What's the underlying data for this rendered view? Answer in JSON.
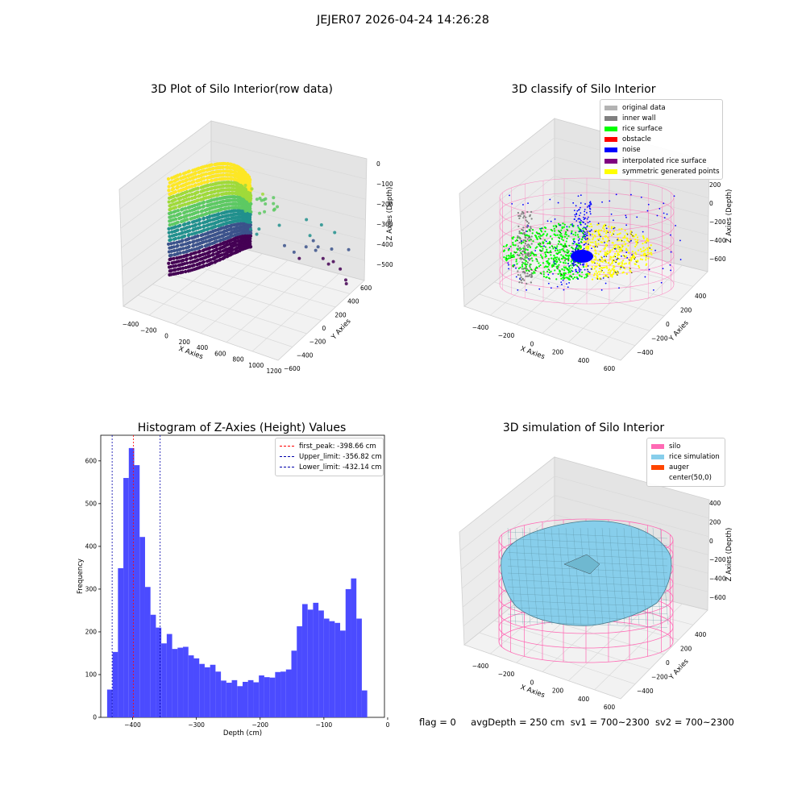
{
  "figure": {
    "suptitle": "JEJER07 2026-04-24 14:26:28",
    "status": {
      "flag": "flag = 0",
      "avg_depth": "avgDepth = 250 cm",
      "sv1": "sv1 = 700~2300",
      "sv2": "sv2 = 700~2300"
    }
  },
  "chart_data": [
    {
      "type": "scatter",
      "title": "3D Plot of Silo Interior(row data)",
      "xlabel": "X Axies",
      "ylabel": "Y Axies",
      "zlabel": "Z Axies (Depth)",
      "x_ticks": [
        "−400",
        "−200",
        "0",
        "200",
        "400",
        "600",
        "800",
        "1000",
        "1200"
      ],
      "y_ticks": [
        "−600",
        "−400",
        "−200",
        "0",
        "200",
        "400",
        "600"
      ],
      "z_ticks": [
        "0",
        "−100",
        "−200",
        "−300",
        "−400",
        "−500"
      ],
      "colormap": "viridis (by depth)",
      "grid": true
    },
    {
      "type": "scatter",
      "title": "3D classify of Silo Interior",
      "xlabel": "X Axies",
      "ylabel": "Y Axies",
      "zlabel": "Z Axies (Depth)",
      "x_ticks": [
        "−400",
        "−200",
        "0",
        "200",
        "400",
        "600"
      ],
      "y_ticks": [
        "−400",
        "−200",
        "0",
        "200",
        "400"
      ],
      "z_ticks": [
        "200",
        "0",
        "−200",
        "−400",
        "−600"
      ],
      "legend": [
        {
          "label": "original data",
          "color": "#b3b3b3"
        },
        {
          "label": "inner wall",
          "color": "#808080"
        },
        {
          "label": "rice surface",
          "color": "#00ff00"
        },
        {
          "label": "obstacle",
          "color": "#ff0000"
        },
        {
          "label": "noise",
          "color": "#0000ff"
        },
        {
          "label": "interpolated rice surface",
          "color": "#800080"
        },
        {
          "label": "symmetric generated points",
          "color": "#ffff00"
        }
      ],
      "legend_position": "top-right",
      "silo_wire_color": "#ff69b4",
      "grid": true
    },
    {
      "type": "bar",
      "title": "Histogram of Z-Axies (Height) Values",
      "xlabel": "Depth (cm)",
      "ylabel": "Frequency",
      "xlim": [
        -450,
        -5
      ],
      "ylim": [
        0,
        660
      ],
      "x_ticks": [
        -400,
        -300,
        -200,
        -100,
        0
      ],
      "x_tick_labels": [
        "−400",
        "−300",
        "−200",
        "−100",
        "0"
      ],
      "y_ticks": [
        0,
        100,
        200,
        300,
        400,
        500,
        600
      ],
      "y_tick_labels": [
        "0",
        "100",
        "200",
        "300",
        "400",
        "500",
        "600"
      ],
      "bin_start": -440,
      "bin_width": 8.5,
      "values": [
        65,
        153,
        349,
        560,
        630,
        590,
        422,
        305,
        240,
        210,
        173,
        195,
        160,
        163,
        165,
        145,
        138,
        125,
        117,
        123,
        107,
        86,
        81,
        87,
        73,
        83,
        87,
        82,
        98,
        94,
        93,
        106,
        107,
        112,
        156,
        213,
        265,
        252,
        268,
        250,
        231,
        225,
        221,
        203,
        300,
        325,
        231,
        63
      ],
      "bar_color": "#4b4bff",
      "vlines": [
        {
          "label": "first_peak: -398.66 cm",
          "x": -398.66,
          "color": "#ff0000"
        },
        {
          "label": "Upper_limit: -356.82 cm",
          "x": -356.82,
          "color": "#0000aa"
        },
        {
          "label": "Lower_limit: -432.14 cm",
          "x": -432.14,
          "color": "#0000aa"
        }
      ],
      "legend_position": "top-right",
      "grid": false
    },
    {
      "type": "surface",
      "title": "3D simulation of Silo Interior",
      "xlabel": "X Axies",
      "ylabel": "Y Axies",
      "zlabel": "Z Axies (Depth)",
      "x_ticks": [
        "−400",
        "−200",
        "0",
        "200",
        "400",
        "600"
      ],
      "y_ticks": [
        "−400",
        "−200",
        "0",
        "200",
        "400"
      ],
      "z_ticks": [
        "400",
        "200",
        "0",
        "−200",
        "−400",
        "−600"
      ],
      "legend": [
        {
          "label": "silo",
          "color": "#ff69b4"
        },
        {
          "label": "rice simulation",
          "color": "#87ceeb"
        },
        {
          "label": "auger",
          "color": "#ff4500"
        },
        {
          "label": "center(50,0)",
          "color": "#ffffff"
        }
      ],
      "legend_position": "top-right",
      "grid": true
    }
  ]
}
